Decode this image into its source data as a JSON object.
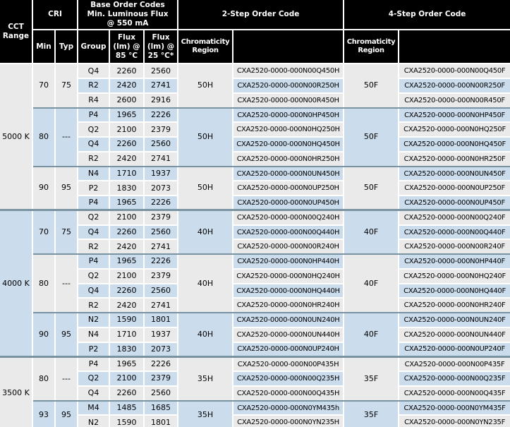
{
  "colors": {
    "header_bg": "#000000",
    "header_text": "#ffffff",
    "row_gray": "#eaeaea",
    "row_blue": "#cbdcec",
    "separator_line": "#7a93a3",
    "cell_border": "#ffffff",
    "body_text": "#000000"
  },
  "table": {
    "header": {
      "cct_range": "CCT\nRange",
      "cri": "CRI",
      "base_order_codes": "Base Order Codes\nMin. Luminous Flux\n@ 550 mA",
      "two_step": "2-Step Order Code",
      "four_step": "4-Step Order Code",
      "min": "Min",
      "typ": "Typ",
      "group": "Group",
      "flux_85": "Flux\n(lm) @\n85 °C",
      "flux_25": "Flux\n(lm) @\n25 °C*",
      "chromaticity_region": "Chromaticity\nRegion"
    },
    "sections": [
      {
        "cct": "5000 K",
        "groups": [
          {
            "min": "70",
            "typ": "75",
            "chrom2": "50H",
            "chrom4": "50F",
            "rows": [
              {
                "group": "Q4",
                "flux85": "2260",
                "flux25": "2560",
                "code2": "CXA2520-0000-000N00Q450H",
                "code4": "CXA2520-0000-000N00Q450F"
              },
              {
                "group": "R2",
                "flux85": "2420",
                "flux25": "2741",
                "code2": "CXA2520-0000-000N00R250H",
                "code4": "CXA2520-0000-000N00R250F"
              },
              {
                "group": "R4",
                "flux85": "2600",
                "flux25": "2916",
                "code2": "CXA2520-0000-000N00R450H",
                "code4": "CXA2520-0000-000N00R450F"
              }
            ]
          },
          {
            "min": "80",
            "typ": "---",
            "chrom2": "50H",
            "chrom4": "50F",
            "rows": [
              {
                "group": "P4",
                "flux85": "1965",
                "flux25": "2226",
                "code2": "CXA2520-0000-000N0HP450H",
                "code4": "CXA2520-0000-000N0HP450F"
              },
              {
                "group": "Q2",
                "flux85": "2100",
                "flux25": "2379",
                "code2": "CXA2520-0000-000N0HQ250H",
                "code4": "CXA2520-0000-000N0HQ250F"
              },
              {
                "group": "Q4",
                "flux85": "2260",
                "flux25": "2560",
                "code2": "CXA2520-0000-000N0HQ450H",
                "code4": "CXA2520-0000-000N0HQ450F"
              },
              {
                "group": "R2",
                "flux85": "2420",
                "flux25": "2741",
                "code2": "CXA2520-0000-000N0HR250H",
                "code4": "CXA2520-0000-000N0HR250F"
              }
            ]
          },
          {
            "min": "90",
            "typ": "95",
            "chrom2": "50H",
            "chrom4": "50F",
            "rows": [
              {
                "group": "N4",
                "flux85": "1710",
                "flux25": "1937",
                "code2": "CXA2520-0000-000N0UN450H",
                "code4": "CXA2520-0000-000N0UN450F"
              },
              {
                "group": "P2",
                "flux85": "1830",
                "flux25": "2073",
                "code2": "CXA2520-0000-000N0UP250H",
                "code4": "CXA2520-0000-000N0UP250F"
              },
              {
                "group": "P4",
                "flux85": "1965",
                "flux25": "2226",
                "code2": "CXA2520-0000-000N0UP450H",
                "code4": "CXA2520-0000-000N0UP450F"
              }
            ]
          }
        ]
      },
      {
        "cct": "4000 K",
        "groups": [
          {
            "min": "70",
            "typ": "75",
            "chrom2": "40H",
            "chrom4": "40F",
            "rows": [
              {
                "group": "Q2",
                "flux85": "2100",
                "flux25": "2379",
                "code2": "CXA2520-0000-000N00Q240H",
                "code4": "CXA2520-0000-000N00Q240F"
              },
              {
                "group": "Q4",
                "flux85": "2260",
                "flux25": "2560",
                "code2": "CXA2520-0000-000N00Q440H",
                "code4": "CXA2520-0000-000N00Q440F"
              },
              {
                "group": "R2",
                "flux85": "2420",
                "flux25": "2741",
                "code2": "CXA2520-0000-000N00R240H",
                "code4": "CXA2520-0000-000N00R240F"
              }
            ]
          },
          {
            "min": "80",
            "typ": "---",
            "chrom2": "40H",
            "chrom4": "40F",
            "rows": [
              {
                "group": "P4",
                "flux85": "1965",
                "flux25": "2226",
                "code2": "CXA2520-0000-000N0HP440H",
                "code4": "CXA2520-0000-000N0HP440F"
              },
              {
                "group": "Q2",
                "flux85": "2100",
                "flux25": "2379",
                "code2": "CXA2520-0000-000N0HQ240H",
                "code4": "CXA2520-0000-000N0HQ240F"
              },
              {
                "group": "Q4",
                "flux85": "2260",
                "flux25": "2560",
                "code2": "CXA2520-0000-000N0HQ440H",
                "code4": "CXA2520-0000-000N0HQ440F"
              },
              {
                "group": "R2",
                "flux85": "2420",
                "flux25": "2741",
                "code2": "CXA2520-0000-000N0HR240H",
                "code4": "CXA2520-0000-000N0HR240F"
              }
            ]
          },
          {
            "min": "90",
            "typ": "95",
            "chrom2": "40H",
            "chrom4": "40F",
            "rows": [
              {
                "group": "N2",
                "flux85": "1590",
                "flux25": "1801",
                "code2": "CXA2520-0000-000N0UN240H",
                "code4": "CXA2520-0000-000N0UN240F"
              },
              {
                "group": "N4",
                "flux85": "1710",
                "flux25": "1937",
                "code2": "CXA2520-0000-000N0UN440H",
                "code4": "CXA2520-0000-000N0UN440F"
              },
              {
                "group": "P2",
                "flux85": "1830",
                "flux25": "2073",
                "code2": "CXA2520-0000-000N0UP240H",
                "code4": "CXA2520-0000-000N0UP240F"
              }
            ]
          }
        ]
      },
      {
        "cct": "3500 K",
        "groups": [
          {
            "min": "80",
            "typ": "---",
            "chrom2": "35H",
            "chrom4": "35F",
            "rows": [
              {
                "group": "P4",
                "flux85": "1965",
                "flux25": "2226",
                "code2": "CXA2520-0000-000N00P435H",
                "code4": "CXA2520-0000-000N00P435F"
              },
              {
                "group": "Q2",
                "flux85": "2100",
                "flux25": "2379",
                "code2": "CXA2520-0000-000N00Q235H",
                "code4": "CXA2520-0000-000N00Q235F"
              },
              {
                "group": "Q4",
                "flux85": "2260",
                "flux25": "2560",
                "code2": "CXA2520-0000-000N00Q435H",
                "code4": "CXA2520-0000-000N00Q435F"
              }
            ]
          },
          {
            "min": "93",
            "typ": "95",
            "chrom2": "35H",
            "chrom4": "35F",
            "rows": [
              {
                "group": "M4",
                "flux85": "1485",
                "flux25": "1685",
                "code2": "CXA2520-0000-000N0YM435h",
                "code4": "CXA2520-0000-000N0YM435F"
              },
              {
                "group": "N2",
                "flux85": "1590",
                "flux25": "1801",
                "code2": "CXA2520-0000-000N0YN235H",
                "code4": "CXA2520-0000-000N0YN235F"
              }
            ]
          }
        ]
      }
    ]
  }
}
